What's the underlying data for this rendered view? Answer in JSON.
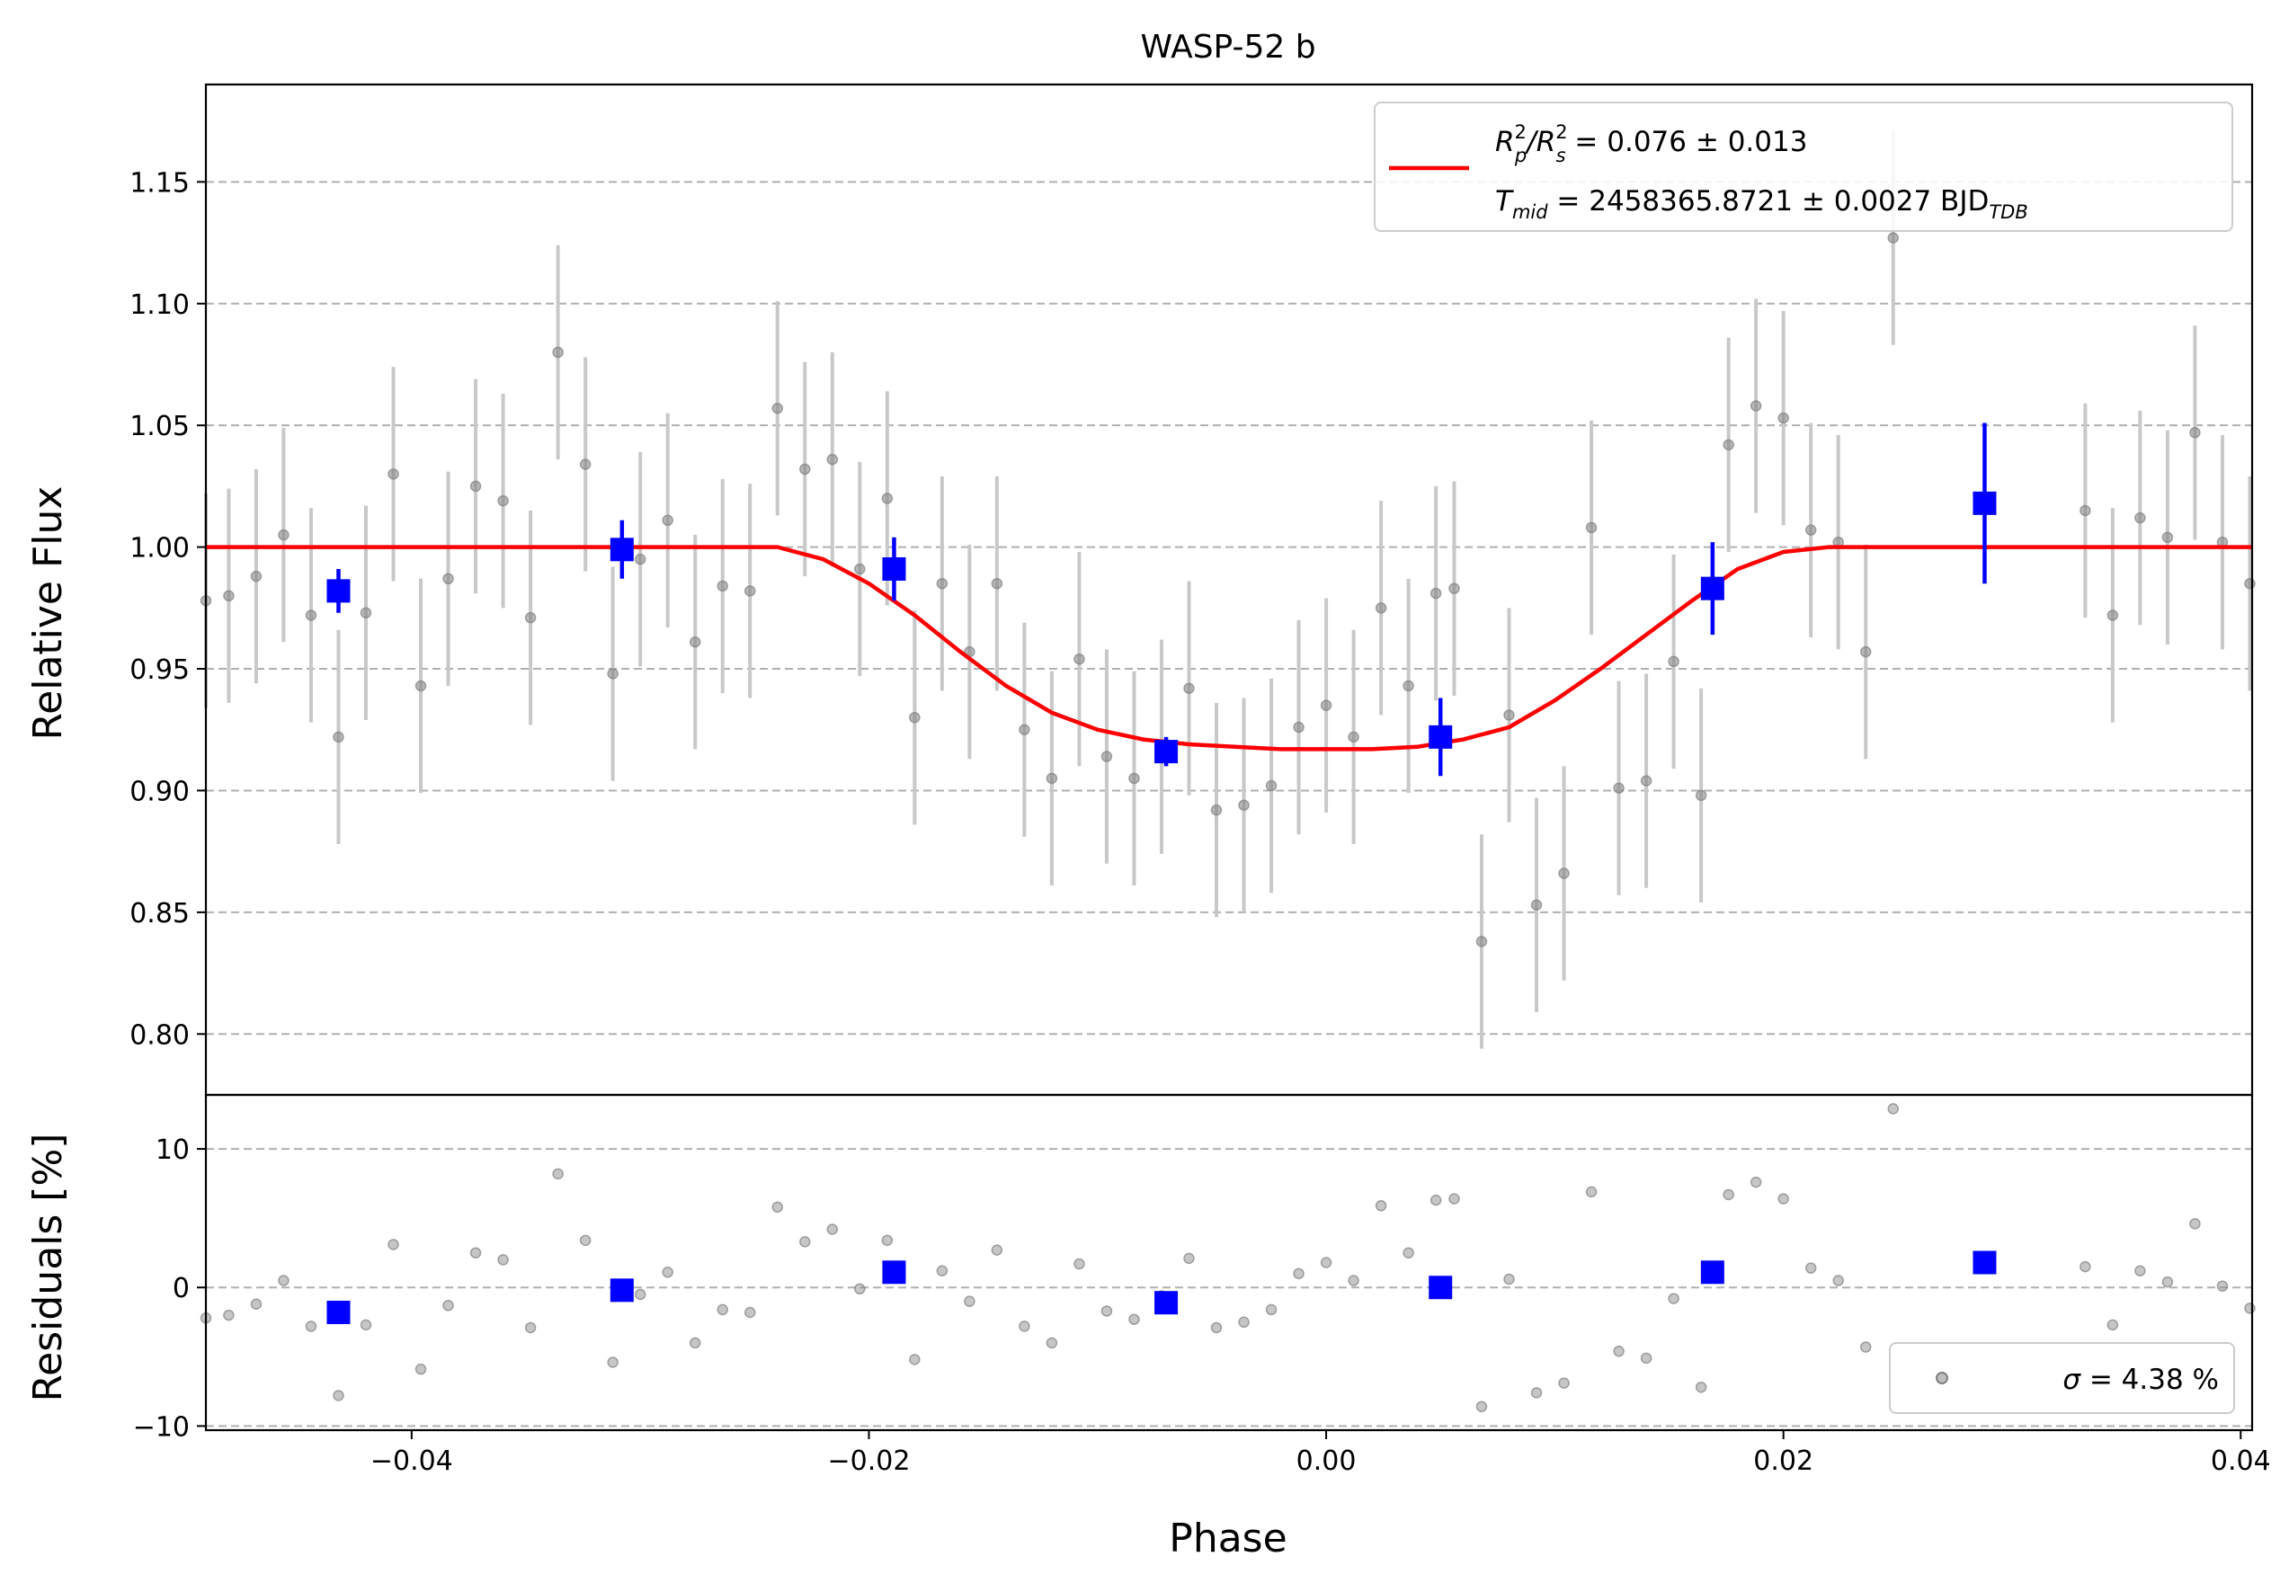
{
  "chart_data": [
    {
      "panel": "light_curve",
      "type": "scatter",
      "title": "WASP-52 b",
      "xlabel": "",
      "ylabel": "Relative Flux",
      "xlim": [
        -0.049,
        0.0405
      ],
      "ylim": [
        0.775,
        1.19
      ],
      "yticks": [
        0.8,
        0.85,
        0.9,
        0.95,
        1.0,
        1.05,
        1.1,
        1.15
      ],
      "ytick_labels": [
        "0.80",
        "0.85",
        "0.90",
        "0.95",
        "1.00",
        "1.05",
        "1.10",
        "1.15"
      ],
      "grid": "horizontal dashed",
      "legend": {
        "placement": "upper right",
        "line1": "R_p^2/R_s^2 = 0.076 ± 0.013",
        "line2": "T_mid = 2458365.8721 ± 0.0027 BJD_TDB",
        "line1_parts": {
          "r1": "R",
          "sup1": "2",
          "sub1": "p",
          "sep": "/R",
          "sup2": "2",
          "sub2": "s",
          "rest": " = 0.076 ± 0.013"
        },
        "line2_parts": {
          "t": "T",
          "sub": "mid",
          "rest": " = 2458365.8721 ± 0.0027 BJD",
          "unit_sub": "TDB"
        }
      },
      "colors": {
        "model": "#ff0000",
        "binned": "#0000ff",
        "raw": "#808080",
        "raw_err": "#c8c8c8"
      },
      "series": [
        {
          "name": "raw",
          "x": [
            -0.049,
            -0.048,
            -0.0468,
            -0.0456,
            -0.0444,
            -0.0432,
            -0.042,
            -0.0408,
            -0.0396,
            -0.0384,
            -0.0372,
            -0.036,
            -0.0348,
            -0.0336,
            -0.0324,
            -0.0312,
            -0.03,
            -0.0288,
            -0.0276,
            -0.0264,
            -0.0252,
            -0.024,
            -0.0228,
            -0.0216,
            -0.0204,
            -0.0192,
            -0.018,
            -0.0168,
            -0.0156,
            -0.0144,
            -0.0132,
            -0.012,
            -0.0108,
            -0.0096,
            -0.0084,
            -0.0072,
            -0.006,
            -0.0048,
            -0.0036,
            -0.0024,
            -0.0012,
            0.0,
            0.0012,
            0.0024,
            0.0036,
            0.0048,
            0.0056,
            0.0068,
            0.008,
            0.0092,
            0.0104,
            0.0116,
            0.0128,
            0.014,
            0.0152,
            0.0164,
            0.0176,
            0.0188,
            0.02,
            0.0212,
            0.0224,
            0.0236,
            0.0248,
            0.0332,
            0.0344,
            0.0356,
            0.0368,
            0.038,
            0.0392,
            0.0404
          ],
          "y": [
            0.978,
            0.98,
            0.988,
            1.005,
            0.972,
            0.922,
            0.973,
            1.03,
            0.943,
            0.987,
            1.025,
            1.019,
            0.971,
            1.08,
            1.034,
            0.948,
            0.995,
            1.011,
            0.961,
            0.984,
            0.982,
            1.057,
            1.032,
            1.036,
            0.991,
            1.02,
            0.93,
            0.985,
            0.957,
            0.985,
            0.925,
            0.905,
            0.954,
            0.914,
            0.905,
            0.918,
            0.942,
            0.892,
            0.894,
            0.902,
            0.926,
            0.935,
            0.922,
            0.975,
            0.943,
            0.981,
            0.983,
            0.838,
            0.931,
            0.853,
            0.866,
            1.008,
            0.901,
            0.904,
            0.953,
            0.898,
            1.042,
            1.058,
            1.053,
            1.007,
            1.002,
            0.957,
            1.127,
            1.015,
            0.972,
            1.012,
            1.004,
            1.047,
            1.002,
            0.985
          ],
          "yerr": 0.044
        },
        {
          "name": "binned",
          "x": [
            -0.0432,
            -0.0308,
            -0.0189,
            -0.007,
            0.005,
            0.0169,
            0.0288
          ],
          "y": [
            0.982,
            0.999,
            0.991,
            0.916,
            0.922,
            0.983,
            1.018
          ],
          "yerr": [
            0.009,
            0.012,
            0.013,
            0.006,
            0.016,
            0.019,
            0.033
          ]
        },
        {
          "name": "model",
          "x": [
            -0.049,
            -0.024,
            -0.022,
            -0.02,
            -0.018,
            -0.016,
            -0.014,
            -0.012,
            -0.01,
            -0.008,
            -0.006,
            -0.004,
            -0.002,
            0.0,
            0.002,
            0.004,
            0.006,
            0.008,
            0.01,
            0.012,
            0.014,
            0.016,
            0.018,
            0.02,
            0.022,
            0.024,
            0.0405
          ],
          "y": [
            1.0,
            1.0,
            0.995,
            0.985,
            0.972,
            0.957,
            0.943,
            0.932,
            0.925,
            0.921,
            0.919,
            0.918,
            0.917,
            0.917,
            0.917,
            0.918,
            0.921,
            0.926,
            0.937,
            0.95,
            0.964,
            0.978,
            0.991,
            0.998,
            1.0,
            1.0,
            1.0
          ]
        }
      ]
    },
    {
      "panel": "residuals",
      "type": "scatter",
      "xlabel": "Phase",
      "ylabel": "Residuals [%]",
      "xlim": [
        -0.049,
        0.0405
      ],
      "ylim": [
        -10.3,
        13.9
      ],
      "xticks": [
        -0.04,
        -0.02,
        0.0,
        0.02,
        0.04
      ],
      "xtick_labels": [
        "−0.04",
        "−0.02",
        "0.00",
        "0.02",
        "0.04"
      ],
      "yticks": [
        -10,
        0,
        10
      ],
      "ytick_labels": [
        "−10",
        "0",
        "10"
      ],
      "grid": "horizontal dashed",
      "legend": {
        "placement": "lower right",
        "sigma_symbol": "σ",
        "text": " = 4.38 %"
      },
      "series": [
        {
          "name": "raw",
          "x": [
            -0.049,
            -0.048,
            -0.0468,
            -0.0456,
            -0.0444,
            -0.0432,
            -0.042,
            -0.0408,
            -0.0396,
            -0.0384,
            -0.0372,
            -0.036,
            -0.0348,
            -0.0336,
            -0.0324,
            -0.0312,
            -0.03,
            -0.0288,
            -0.0276,
            -0.0264,
            -0.0252,
            -0.024,
            -0.0228,
            -0.0216,
            -0.0204,
            -0.0192,
            -0.018,
            -0.0168,
            -0.0156,
            -0.0144,
            -0.0132,
            -0.012,
            -0.0108,
            -0.0096,
            -0.0084,
            -0.0072,
            -0.006,
            -0.0048,
            -0.0036,
            -0.0024,
            -0.0012,
            0.0,
            0.0012,
            0.0024,
            0.0036,
            0.0048,
            0.0056,
            0.0068,
            0.008,
            0.0092,
            0.0104,
            0.0116,
            0.0128,
            0.014,
            0.0152,
            0.0164,
            0.0176,
            0.0188,
            0.02,
            0.0212,
            0.0224,
            0.0236,
            0.0248,
            0.0332,
            0.0344,
            0.0356,
            0.0368,
            0.038,
            0.0392,
            0.0404
          ],
          "y": [
            -2.2,
            -2.0,
            -1.2,
            0.5,
            -2.8,
            -7.8,
            -2.7,
            3.1,
            -5.9,
            -1.3,
            2.5,
            2.0,
            -2.9,
            8.2,
            3.4,
            -5.4,
            -0.5,
            1.1,
            -4.0,
            -1.6,
            -1.8,
            5.8,
            3.3,
            4.2,
            -0.1,
            3.4,
            -5.2,
            1.2,
            -1.0,
            2.7,
            -2.8,
            -4.0,
            1.7,
            -1.7,
            -2.3,
            -0.6,
            2.1,
            -2.9,
            -2.5,
            -1.6,
            1.0,
            1.8,
            0.5,
            5.9,
            2.5,
            6.3,
            6.4,
            -8.6,
            0.6,
            -7.6,
            -6.9,
            6.9,
            -4.6,
            -5.1,
            -0.8,
            -7.2,
            6.7,
            7.6,
            6.4,
            1.4,
            0.5,
            -4.3,
            12.9,
            1.5,
            -2.7,
            1.2,
            0.4,
            4.6,
            0.1,
            -1.5
          ]
        },
        {
          "name": "binned",
          "x": [
            -0.0432,
            -0.0308,
            -0.0189,
            -0.007,
            0.005,
            0.0169,
            0.0288
          ],
          "y": [
            -1.8,
            -0.2,
            1.1,
            -1.1,
            0.0,
            1.1,
            1.8
          ]
        }
      ]
    }
  ]
}
